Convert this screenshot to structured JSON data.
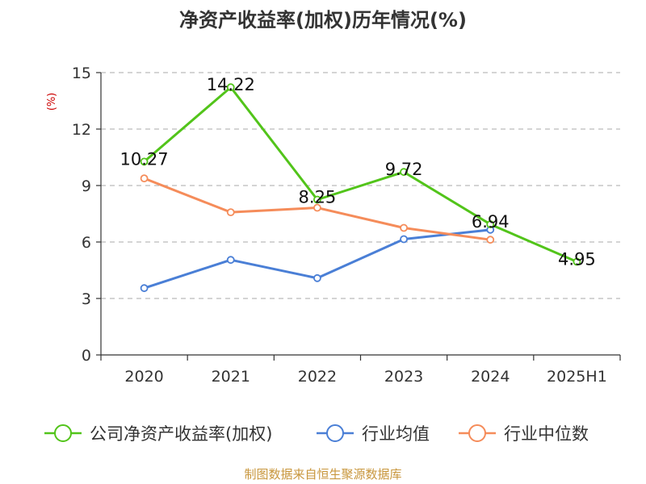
{
  "chart_data": {
    "type": "line",
    "title": "净资产收益率(加权)历年情况(%)",
    "ylabel": "(%)",
    "categories": [
      "2020",
      "2021",
      "2022",
      "2023",
      "2024",
      "2025H1"
    ],
    "ylim": [
      0,
      15
    ],
    "yticks": [
      0,
      3,
      6,
      9,
      12,
      15
    ],
    "grid": true,
    "legend_position": "bottom",
    "series": [
      {
        "name": "公司净资产收益率(加权)",
        "color": "#52c41a",
        "values": [
          10.27,
          14.22,
          8.25,
          9.72,
          6.94,
          4.95
        ],
        "data_labels": [
          "10.27",
          "14.22",
          "8.25",
          "9.72",
          "6.94",
          "4.95"
        ]
      },
      {
        "name": "行业均值",
        "color": "#4a7fd6",
        "values": [
          3.55,
          5.05,
          4.08,
          6.15,
          6.65,
          null
        ]
      },
      {
        "name": "行业中位数",
        "color": "#f58c5a",
        "values": [
          9.38,
          7.58,
          7.82,
          6.75,
          6.12,
          null
        ]
      }
    ],
    "source": "制图数据来自恒生聚源数据库"
  }
}
